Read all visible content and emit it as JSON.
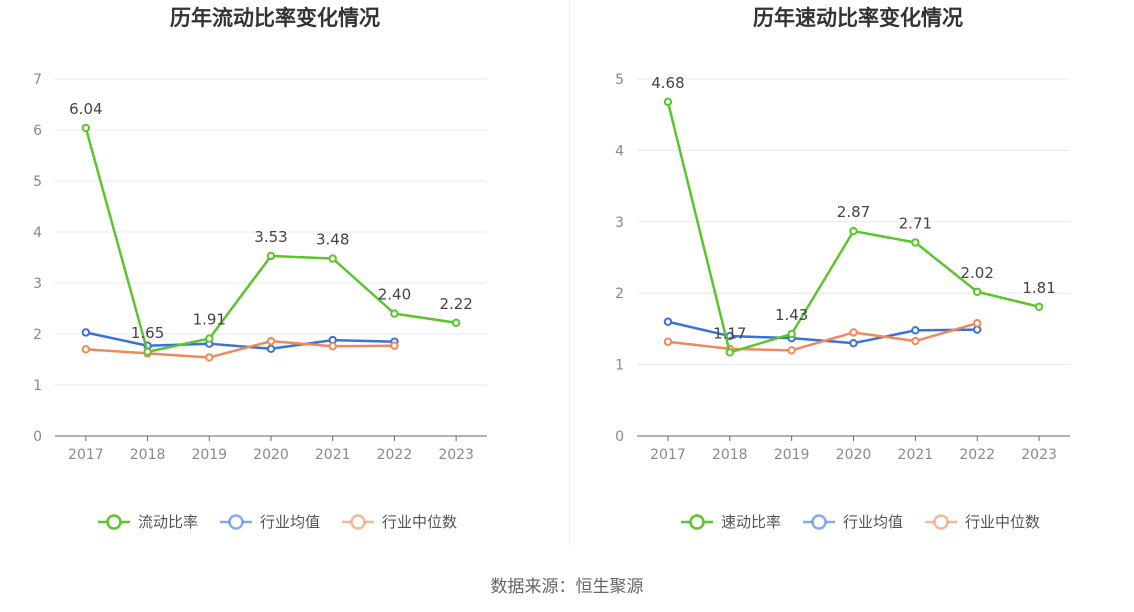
{
  "source": "数据来源：恒生聚源",
  "colors": {
    "main": "#5cc42c",
    "avg": "#3a72d8",
    "median": "#f0895a",
    "grid": "#e6e9ef",
    "axis": "#666666"
  },
  "chart_data": [
    {
      "type": "line",
      "title": "历年流动比率变化情况",
      "categories": [
        "2017",
        "2018",
        "2019",
        "2020",
        "2021",
        "2022",
        "2023"
      ],
      "ylim": [
        0,
        7
      ],
      "yticks": [
        "0",
        "1",
        "2",
        "3",
        "4",
        "5",
        "6",
        "7"
      ],
      "grid": true,
      "legend_position": "bottom",
      "series": [
        {
          "name": "流动比率",
          "values": [
            6.04,
            1.65,
            1.91,
            3.53,
            3.48,
            2.4,
            2.22
          ],
          "labels": [
            "6.04",
            "1.65",
            "1.91",
            "3.53",
            "3.48",
            "2.40",
            "2.22"
          ]
        },
        {
          "name": "行业均值",
          "values": [
            2.03,
            1.77,
            1.81,
            1.71,
            1.88,
            1.85,
            null
          ]
        },
        {
          "name": "行业中位数",
          "values": [
            1.7,
            1.62,
            1.54,
            1.86,
            1.76,
            1.77,
            null
          ]
        }
      ]
    },
    {
      "type": "line",
      "title": "历年速动比率变化情况",
      "categories": [
        "2017",
        "2018",
        "2019",
        "2020",
        "2021",
        "2022",
        "2023"
      ],
      "ylim": [
        0,
        5
      ],
      "yticks": [
        "0",
        "1",
        "2",
        "3",
        "4",
        "5"
      ],
      "grid": true,
      "legend_position": "bottom",
      "series": [
        {
          "name": "速动比率",
          "values": [
            4.68,
            1.17,
            1.43,
            2.87,
            2.71,
            2.02,
            1.81
          ],
          "labels": [
            "4.68",
            "1.17",
            "1.43",
            "2.87",
            "2.71",
            "2.02",
            "1.81"
          ]
        },
        {
          "name": "行业均值",
          "values": [
            1.6,
            1.4,
            1.37,
            1.3,
            1.48,
            1.49,
            null
          ]
        },
        {
          "name": "行业中位数",
          "values": [
            1.32,
            1.22,
            1.2,
            1.45,
            1.33,
            1.58,
            null
          ]
        }
      ]
    }
  ]
}
